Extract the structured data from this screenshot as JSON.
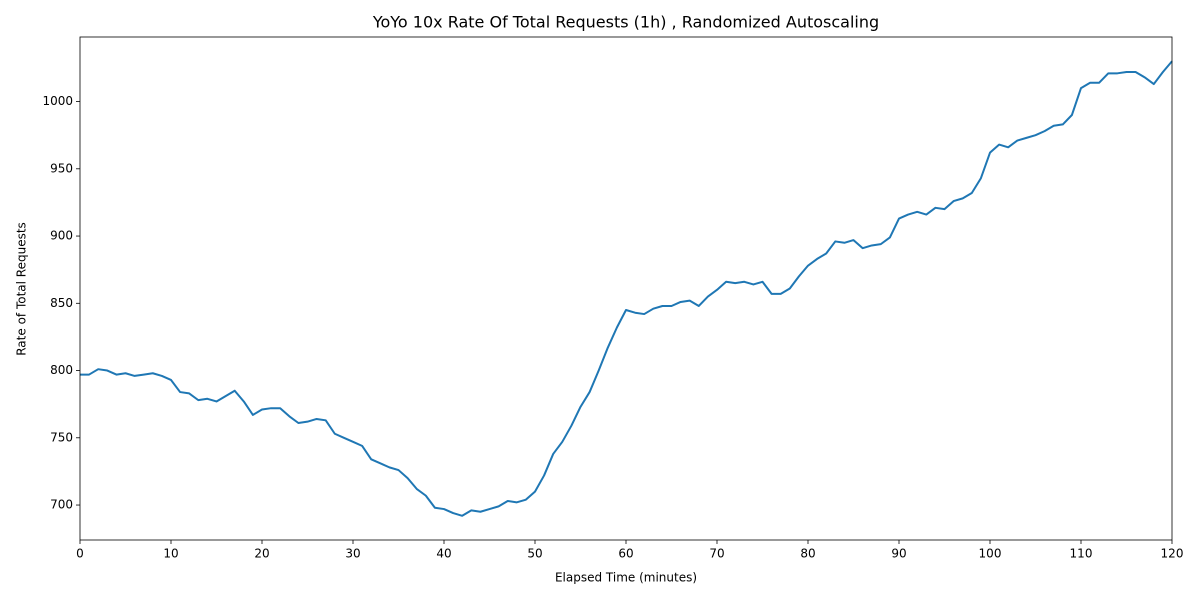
{
  "chart_data": {
    "type": "line",
    "title": "YoYo 10x Rate Of Total Requests (1h) , Randomized Autoscaling",
    "x_label": "Elapsed Time (minutes)",
    "y_label": "Rate of Total Requests",
    "x": [
      0,
      1,
      2,
      3,
      4,
      5,
      6,
      7,
      8,
      9,
      10,
      11,
      12,
      13,
      14,
      15,
      16,
      17,
      18,
      19,
      20,
      21,
      22,
      23,
      24,
      25,
      26,
      27,
      28,
      29,
      30,
      31,
      32,
      33,
      34,
      35,
      36,
      37,
      38,
      39,
      40,
      41,
      42,
      43,
      44,
      45,
      46,
      47,
      48,
      49,
      50,
      51,
      52,
      53,
      54,
      55,
      56,
      57,
      58,
      59,
      60,
      61,
      62,
      63,
      64,
      65,
      66,
      67,
      68,
      69,
      70,
      71,
      72,
      73,
      74,
      75,
      76,
      77,
      78,
      79,
      80,
      81,
      82,
      83,
      84,
      85,
      86,
      87,
      88,
      89,
      90,
      91,
      92,
      93,
      94,
      95,
      96,
      97,
      98,
      99,
      100,
      101,
      102,
      103,
      104,
      105,
      106,
      107,
      108,
      109,
      110,
      111,
      112,
      113,
      114,
      115,
      116,
      117,
      118,
      119,
      120
    ],
    "series": [
      {
        "name": "Rate of Total Requests",
        "color": "#1f77b4",
        "values": [
          797,
          797,
          801,
          800,
          797,
          798,
          796,
          797,
          798,
          796,
          793,
          784,
          783,
          778,
          779,
          777,
          781,
          785,
          777,
          767,
          771,
          772,
          772,
          766,
          761,
          762,
          764,
          763,
          753,
          750,
          747,
          744,
          734,
          731,
          728,
          726,
          720,
          712,
          707,
          698,
          697,
          694,
          692,
          696,
          695,
          697,
          699,
          703,
          702,
          704,
          710,
          722,
          738,
          747,
          759,
          773,
          784,
          800,
          817,
          832,
          845,
          843,
          842,
          846,
          848,
          848,
          851,
          852,
          848,
          855,
          860,
          866,
          865,
          866,
          864,
          866,
          857,
          857,
          861,
          870,
          878,
          883,
          887,
          896,
          895,
          897,
          891,
          893,
          894,
          899,
          913,
          916,
          918,
          916,
          921,
          920,
          926,
          928,
          932,
          943,
          962,
          968,
          966,
          971,
          973,
          975,
          978,
          982,
          983,
          990,
          1010,
          1014,
          1014,
          1021,
          1021,
          1022,
          1022,
          1018,
          1013,
          1022,
          1030
        ]
      }
    ],
    "xlim": [
      0,
      120
    ],
    "xticks": [
      0,
      10,
      20,
      30,
      40,
      50,
      60,
      70,
      80,
      90,
      100,
      110,
      120
    ],
    "ylim": [
      674,
      1048
    ],
    "yticks": [
      700,
      750,
      800,
      850,
      900,
      950,
      1000
    ],
    "grid": false
  }
}
